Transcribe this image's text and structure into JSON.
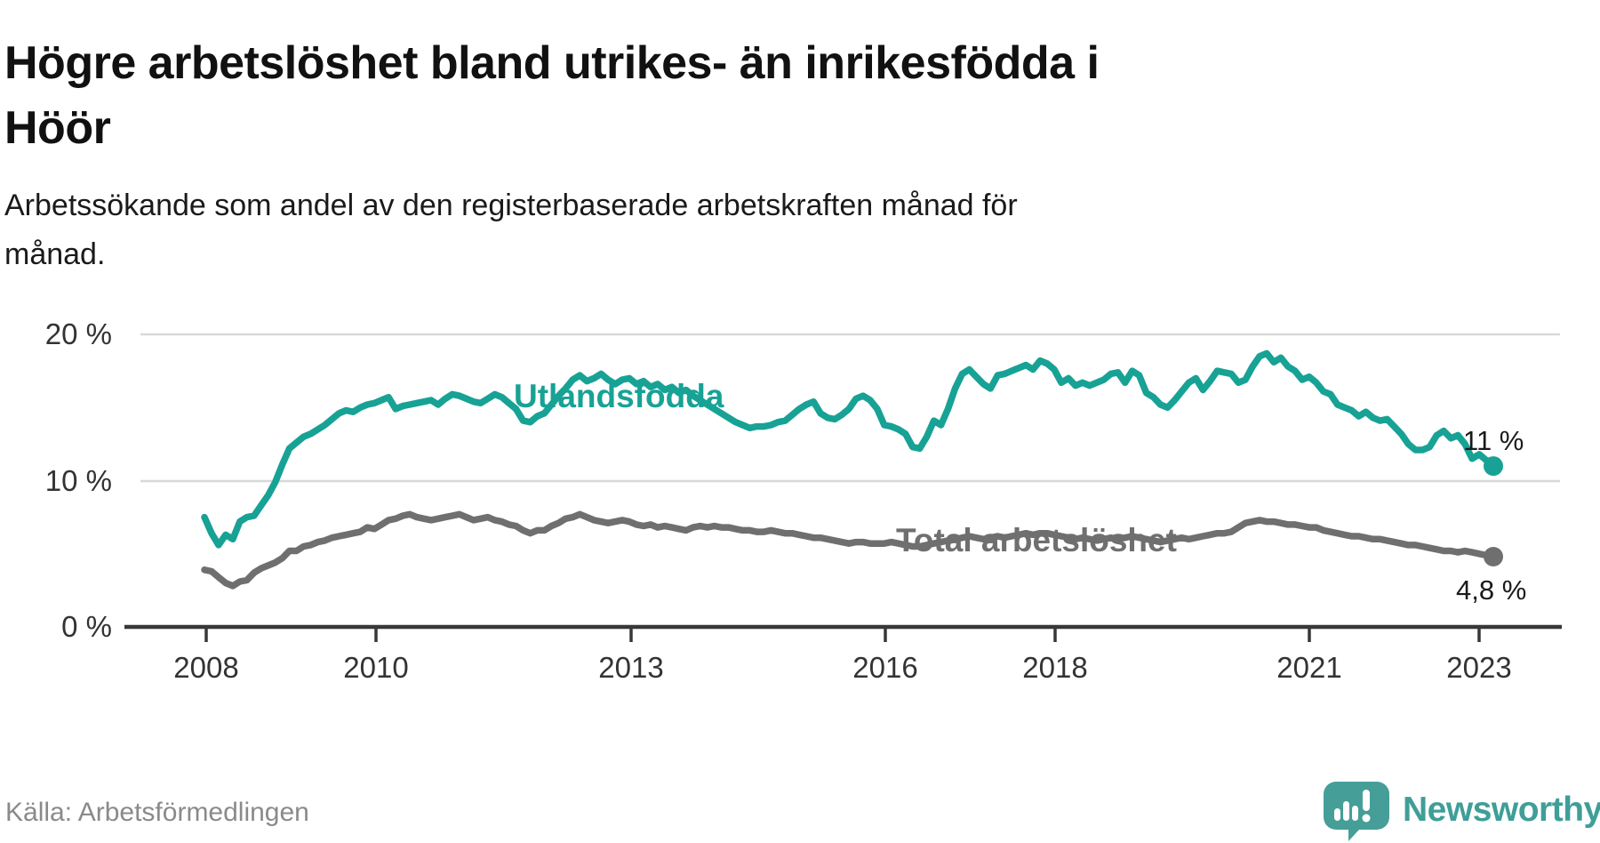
{
  "header": {
    "title_line1": "Högre arbetslöshet bland utrikes- än inrikesfödda i",
    "title_line2": "Höör",
    "subtitle_line1": "Arbetssökande som andel av den registerbaserade arbetskraften månad för",
    "subtitle_line2": "månad."
  },
  "footer": {
    "source": "Källa: Arbetsförmedlingen",
    "brand_name": "Newsworthy"
  },
  "colors": {
    "foreign_born_line": "#17a295",
    "total_line": "#6f6f6f",
    "gridline": "#d8d8d8",
    "axis": "#383838",
    "tick_text": "#333333",
    "title_text": "#111111",
    "muted_text": "#8a8a8a",
    "brand_teal": "#3f9e98"
  },
  "chart_data": {
    "type": "line",
    "unit": "%",
    "frequency": "monthly",
    "period_start": "2008-01",
    "period_end": "2023-03",
    "ylim": [
      0,
      20
    ],
    "grid": "horizontal-only",
    "legend_position": "inline-labels",
    "y_ticks": [
      {
        "label": "0 %",
        "value": 0
      },
      {
        "label": "10 %",
        "value": 10
      },
      {
        "label": "20 %",
        "value": 20
      }
    ],
    "x_ticks": [
      {
        "label": "2008",
        "year": 2008
      },
      {
        "label": "2010",
        "year": 2010
      },
      {
        "label": "2013",
        "year": 2013
      },
      {
        "label": "2016",
        "year": 2016
      },
      {
        "label": "2018",
        "year": 2018
      },
      {
        "label": "2021",
        "year": 2021
      },
      {
        "label": "2023",
        "year": 2023
      }
    ],
    "series": [
      {
        "name": "Utlandsfödda",
        "color": "#17a295",
        "end_label": "11 %",
        "end_value": 11.0,
        "values": [
          7.5,
          6.4,
          5.6,
          6.3,
          6.0,
          7.2,
          7.5,
          7.6,
          8.3,
          9.0,
          9.9,
          11.1,
          12.2,
          12.6,
          13.0,
          13.2,
          13.5,
          13.8,
          14.2,
          14.6,
          14.8,
          14.7,
          15.0,
          15.2,
          15.3,
          15.5,
          15.7,
          14.9,
          15.1,
          15.2,
          15.3,
          15.4,
          15.5,
          15.2,
          15.6,
          15.9,
          15.8,
          15.6,
          15.4,
          15.3,
          15.6,
          15.9,
          15.7,
          15.3,
          14.9,
          14.1,
          14.0,
          14.4,
          14.6,
          15.2,
          15.8,
          16.3,
          16.9,
          17.2,
          16.8,
          17.0,
          17.3,
          16.9,
          16.6,
          16.9,
          17.0,
          16.6,
          16.8,
          16.4,
          16.6,
          16.2,
          16.4,
          16.0,
          16.2,
          15.8,
          15.5,
          15.2,
          14.9,
          14.6,
          14.3,
          14.0,
          13.8,
          13.6,
          13.7,
          13.7,
          13.8,
          14.0,
          14.1,
          14.5,
          14.9,
          15.2,
          15.4,
          14.6,
          14.3,
          14.2,
          14.5,
          14.9,
          15.6,
          15.8,
          15.5,
          14.9,
          13.8,
          13.7,
          13.5,
          13.2,
          12.3,
          12.2,
          13.0,
          14.1,
          13.8,
          14.9,
          16.3,
          17.3,
          17.6,
          17.1,
          16.6,
          16.3,
          17.2,
          17.3,
          17.5,
          17.7,
          17.9,
          17.6,
          18.2,
          18.0,
          17.6,
          16.7,
          17.0,
          16.5,
          16.7,
          16.5,
          16.7,
          16.9,
          17.3,
          17.4,
          16.7,
          17.5,
          17.2,
          16.0,
          15.7,
          15.2,
          15.0,
          15.5,
          16.1,
          16.7,
          17.0,
          16.2,
          16.8,
          17.5,
          17.4,
          17.3,
          16.7,
          16.9,
          17.8,
          18.5,
          18.7,
          18.1,
          18.4,
          17.8,
          17.5,
          16.9,
          17.1,
          16.7,
          16.1,
          15.9,
          15.2,
          15.0,
          14.8,
          14.4,
          14.7,
          14.3,
          14.1,
          14.2,
          13.7,
          13.2,
          12.5,
          12.1,
          12.1,
          12.3,
          13.1,
          13.4,
          12.9,
          13.1,
          12.5,
          11.5,
          11.8,
          11.4,
          11.0
        ]
      },
      {
        "name": "Total arbetslöshet",
        "color": "#6f6f6f",
        "end_label": "4,8 %",
        "end_value": 4.8,
        "values": [
          3.9,
          3.8,
          3.4,
          3.0,
          2.8,
          3.1,
          3.2,
          3.7,
          4.0,
          4.2,
          4.4,
          4.7,
          5.2,
          5.2,
          5.5,
          5.6,
          5.8,
          5.9,
          6.1,
          6.2,
          6.3,
          6.4,
          6.5,
          6.8,
          6.7,
          7.0,
          7.3,
          7.4,
          7.6,
          7.7,
          7.5,
          7.4,
          7.3,
          7.4,
          7.5,
          7.6,
          7.7,
          7.5,
          7.3,
          7.4,
          7.5,
          7.3,
          7.2,
          7.0,
          6.9,
          6.6,
          6.4,
          6.6,
          6.6,
          6.9,
          7.1,
          7.4,
          7.5,
          7.7,
          7.5,
          7.3,
          7.2,
          7.1,
          7.2,
          7.3,
          7.2,
          7.0,
          6.9,
          7.0,
          6.8,
          6.9,
          6.8,
          6.7,
          6.6,
          6.8,
          6.9,
          6.8,
          6.9,
          6.8,
          6.8,
          6.7,
          6.6,
          6.6,
          6.5,
          6.5,
          6.6,
          6.5,
          6.4,
          6.4,
          6.3,
          6.2,
          6.1,
          6.1,
          6.0,
          5.9,
          5.8,
          5.7,
          5.8,
          5.8,
          5.7,
          5.7,
          5.7,
          5.8,
          5.7,
          5.6,
          5.5,
          5.5,
          5.6,
          5.7,
          5.8,
          5.9,
          6.0,
          6.1,
          6.2,
          6.1,
          6.0,
          6.1,
          6.2,
          6.1,
          6.2,
          6.3,
          6.4,
          6.3,
          6.4,
          6.4,
          6.3,
          6.2,
          6.1,
          6.0,
          6.1,
          6.0,
          5.9,
          6.0,
          6.1,
          6.0,
          6.1,
          6.2,
          6.1,
          6.0,
          5.9,
          5.8,
          5.9,
          6.0,
          6.1,
          6.0,
          6.1,
          6.2,
          6.3,
          6.4,
          6.4,
          6.5,
          6.8,
          7.1,
          7.2,
          7.3,
          7.2,
          7.2,
          7.1,
          7.0,
          7.0,
          6.9,
          6.8,
          6.8,
          6.6,
          6.5,
          6.4,
          6.3,
          6.2,
          6.2,
          6.1,
          6.0,
          6.0,
          5.9,
          5.8,
          5.7,
          5.6,
          5.6,
          5.5,
          5.4,
          5.3,
          5.2,
          5.2,
          5.1,
          5.2,
          5.1,
          5.0,
          4.9,
          4.8
        ]
      }
    ]
  }
}
